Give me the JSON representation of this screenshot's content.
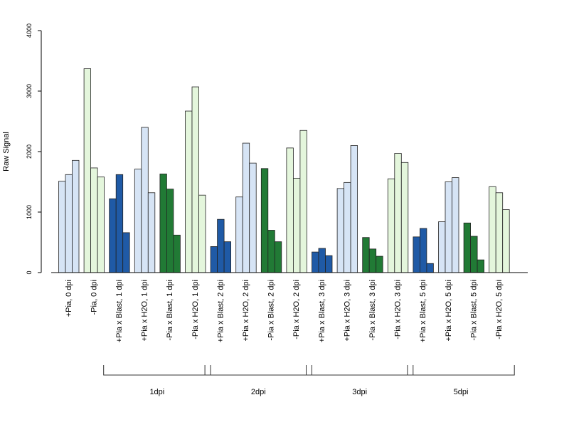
{
  "chart_data": {
    "type": "bar",
    "ylabel": "Raw Signal",
    "xlabel": "",
    "title": "",
    "ylim": [
      0,
      4000
    ],
    "yticks": [
      0,
      1000,
      2000,
      3000,
      4000
    ],
    "ytick_labels": [
      "0",
      "1000",
      "2000",
      "3000",
      "4000"
    ],
    "bars_per_category": 3,
    "colors": {
      "light_blue": "#d6e4f5",
      "light_green": "#e4f6dc",
      "dark_blue": "#1f5aa6",
      "dark_green": "#217a35"
    },
    "categories": [
      {
        "label": "+Pia, 0 dpi",
        "color": "light_blue",
        "values": [
          1510,
          1620,
          1855
        ]
      },
      {
        "label": "-Pia, 0 dpi",
        "color": "light_green",
        "values": [
          3370,
          1730,
          1580
        ]
      },
      {
        "label": "+Pia x Blast, 1 dpi",
        "color": "dark_blue",
        "values": [
          1220,
          1620,
          660
        ]
      },
      {
        "label": "+Pia x H2O, 1 dpi",
        "color": "light_blue",
        "values": [
          1710,
          2400,
          1320
        ]
      },
      {
        "label": "-Pia x Blast, 1 dpi",
        "color": "dark_green",
        "values": [
          1630,
          1380,
          620
        ]
      },
      {
        "label": "-Pia x H2O, 1 dpi",
        "color": "light_green",
        "values": [
          2670,
          3070,
          1280
        ]
      },
      {
        "label": "+Pia x Blast, 2 dpi",
        "color": "dark_blue",
        "values": [
          430,
          880,
          510
        ]
      },
      {
        "label": "+Pia x H2O, 2 dpi",
        "color": "light_blue",
        "values": [
          1250,
          2140,
          1810
        ]
      },
      {
        "label": "-Pia x Blast, 2 dpi",
        "color": "dark_green",
        "values": [
          1720,
          700,
          510
        ]
      },
      {
        "label": "-Pia x H2O, 2 dpi",
        "color": "light_green",
        "values": [
          2060,
          1560,
          2350
        ]
      },
      {
        "label": "+Pia x Blast, 3 dpi",
        "color": "dark_blue",
        "values": [
          340,
          400,
          280
        ]
      },
      {
        "label": "+Pia x H2O, 3 dpi",
        "color": "light_blue",
        "values": [
          1390,
          1490,
          2100
        ]
      },
      {
        "label": "-Pia x Blast, 3 dpi",
        "color": "dark_green",
        "values": [
          580,
          390,
          270
        ]
      },
      {
        "label": "-Pia x H2O, 3 dpi",
        "color": "light_green",
        "values": [
          1550,
          1970,
          1820
        ]
      },
      {
        "label": "+Pia x Blast, 5 dpi",
        "color": "dark_blue",
        "values": [
          590,
          730,
          150
        ]
      },
      {
        "label": "+Pia x H2O, 5 dpi",
        "color": "light_blue",
        "values": [
          840,
          1500,
          1570
        ]
      },
      {
        "label": "-Pia x Blast, 5 dpi",
        "color": "dark_green",
        "values": [
          820,
          600,
          210
        ]
      },
      {
        "label": "-Pia x H2O, 5 dpi",
        "color": "light_green",
        "values": [
          1420,
          1320,
          1040
        ]
      }
    ],
    "groups": [
      {
        "label": "1dpi",
        "start_category": 2,
        "end_category": 5
      },
      {
        "label": "2dpi",
        "start_category": 6,
        "end_category": 9
      },
      {
        "label": "3dpi",
        "start_category": 10,
        "end_category": 13
      },
      {
        "label": "5dpi",
        "start_category": 14,
        "end_category": 17
      }
    ]
  }
}
